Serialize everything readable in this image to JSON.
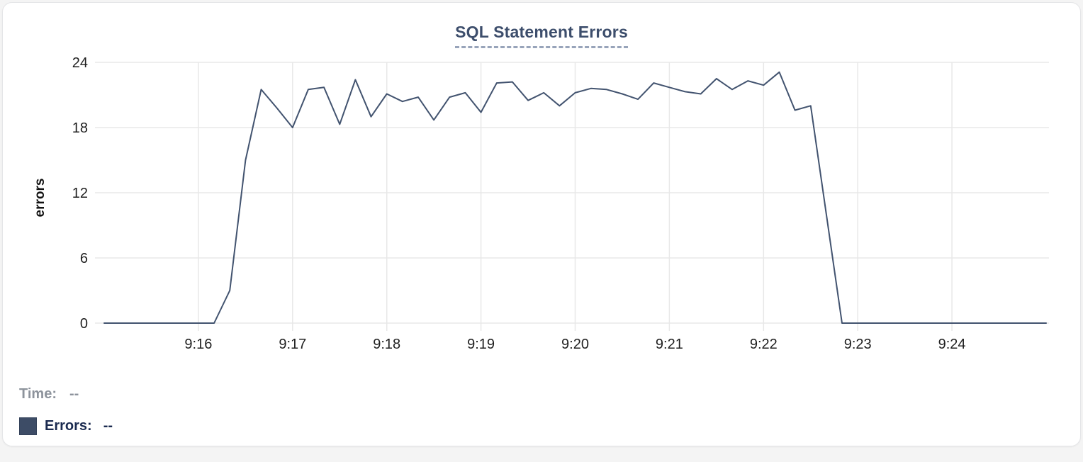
{
  "chart": {
    "title": "SQL Statement Errors",
    "y_axis_label": "errors"
  },
  "footer": {
    "time_label": "Time:",
    "time_value": "--",
    "errors_label": "Errors:",
    "errors_value": "--",
    "errors_swatch_color": "#3d4c66"
  },
  "colors": {
    "line": "#42536f",
    "grid": "#e8e8e8",
    "tick_text": "#1f1f1f",
    "title_text": "#3d4e6c",
    "title_underline": "#98a4ba",
    "time_text_gray": "#8d939c",
    "errors_text_navy": "#1b2b50"
  },
  "chart_data": {
    "type": "line",
    "title": "SQL Statement Errors",
    "xlabel": "",
    "ylabel": "errors",
    "ylim": [
      0,
      24
    ],
    "y_ticks": [
      0,
      6,
      12,
      18,
      24
    ],
    "x_tick_labels": [
      "9:16",
      "9:17",
      "9:18",
      "9:19",
      "9:20",
      "9:21",
      "9:22",
      "9:23",
      "9:24"
    ],
    "grid": true,
    "legend_position": "bottom-left",
    "interval_seconds": 10,
    "x": [
      "9:15:00",
      "9:15:10",
      "9:15:20",
      "9:15:30",
      "9:15:40",
      "9:15:50",
      "9:16:00",
      "9:16:10",
      "9:16:20",
      "9:16:30",
      "9:16:40",
      "9:16:50",
      "9:17:00",
      "9:17:10",
      "9:17:20",
      "9:17:30",
      "9:17:40",
      "9:17:50",
      "9:18:00",
      "9:18:10",
      "9:18:20",
      "9:18:30",
      "9:18:40",
      "9:18:50",
      "9:19:00",
      "9:19:10",
      "9:19:20",
      "9:19:30",
      "9:19:40",
      "9:19:50",
      "9:20:00",
      "9:20:10",
      "9:20:20",
      "9:20:30",
      "9:20:40",
      "9:20:50",
      "9:21:00",
      "9:21:10",
      "9:21:20",
      "9:21:30",
      "9:21:40",
      "9:21:50",
      "9:22:00",
      "9:22:10",
      "9:22:20",
      "9:22:30",
      "9:22:40",
      "9:22:50",
      "9:23:00",
      "9:23:10",
      "9:23:20",
      "9:23:30",
      "9:23:40",
      "9:23:50",
      "9:24:00",
      "9:24:10",
      "9:24:20",
      "9:24:30",
      "9:24:40",
      "9:24:50",
      "9:25:00"
    ],
    "y": [
      0,
      0,
      0,
      0,
      0,
      0,
      0,
      0,
      3,
      15,
      21.5,
      19.8,
      18,
      21.5,
      21.7,
      18.3,
      22.4,
      19,
      21.1,
      20.4,
      20.8,
      18.7,
      20.8,
      21.2,
      19.4,
      22.1,
      22.2,
      20.5,
      21.2,
      20,
      21.2,
      21.6,
      21.5,
      21.1,
      20.6,
      22.1,
      21.7,
      21.3,
      21.1,
      22.5,
      21.5,
      22.3,
      21.9,
      23.1,
      19.6,
      20,
      10,
      0,
      0,
      0,
      0,
      0,
      0,
      0,
      0,
      0,
      0,
      0,
      0,
      0,
      0
    ]
  }
}
